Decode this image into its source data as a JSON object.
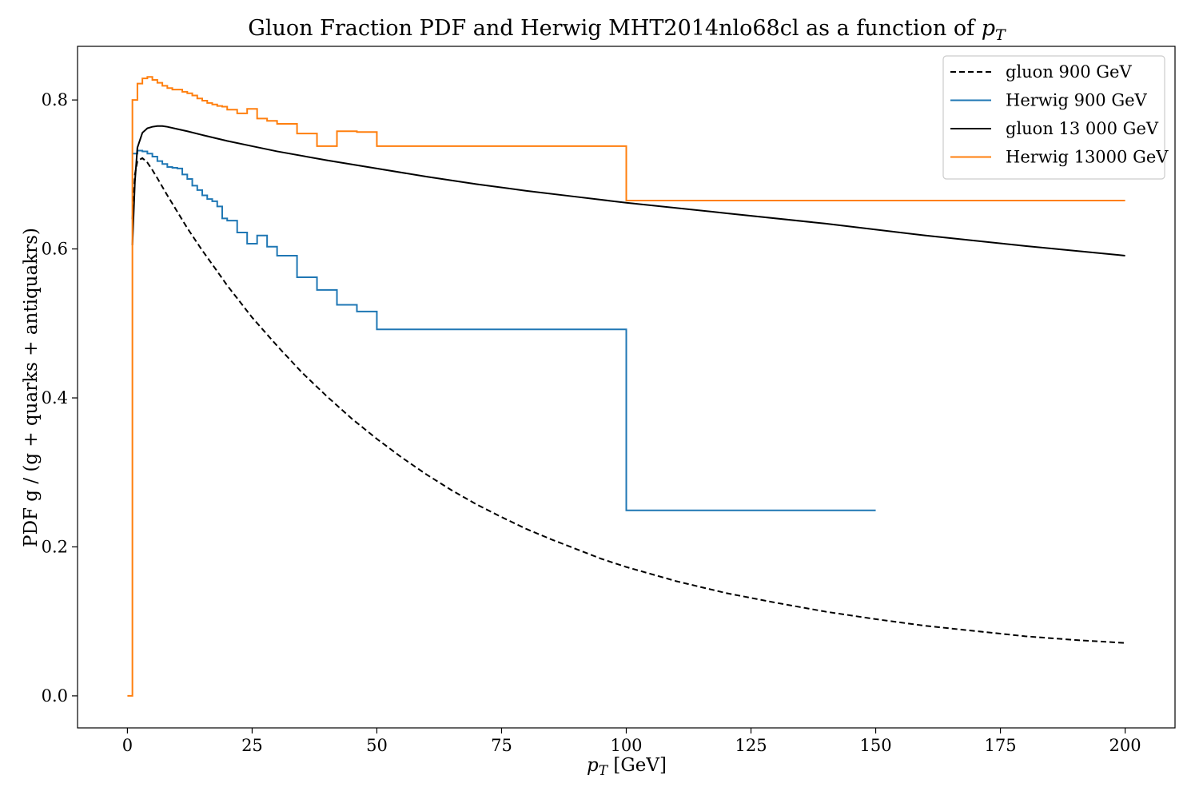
{
  "chart_data": {
    "type": "line",
    "title": "Gluon Fraction PDF and Herwig MHT2014nlo68cl as a function of ",
    "title_math": "p",
    "title_math_sub": "T",
    "xlabel_math": "p",
    "xlabel_math_sub": "T",
    "xlabel": " [GeV]",
    "ylabel": "PDF g / (g + quarks + antiquakrs)",
    "xlim": [
      -10,
      210
    ],
    "ylim": [
      -0.043,
      0.872
    ],
    "xticks": [
      0,
      25,
      50,
      75,
      100,
      125,
      150,
      175,
      200
    ],
    "yticks": [
      0.0,
      0.2,
      0.4,
      0.6,
      0.8
    ],
    "grid": false,
    "legend_position": "top-right",
    "series": [
      {
        "name": "gluon 900 GeV",
        "style": "dashed",
        "color": "#000000",
        "kind": "line",
        "x": [
          1,
          1.5,
          2,
          3,
          4,
          5,
          6,
          8,
          10,
          12,
          15,
          18,
          20,
          25,
          30,
          35,
          40,
          45,
          50,
          55,
          60,
          65,
          70,
          75,
          80,
          85,
          90,
          95,
          100,
          110,
          120,
          130,
          140,
          150,
          160,
          170,
          180,
          190,
          200
        ],
        "y": [
          0.64,
          0.7,
          0.718,
          0.722,
          0.716,
          0.706,
          0.695,
          0.672,
          0.65,
          0.628,
          0.598,
          0.57,
          0.551,
          0.508,
          0.47,
          0.434,
          0.402,
          0.372,
          0.345,
          0.32,
          0.297,
          0.276,
          0.257,
          0.24,
          0.224,
          0.21,
          0.197,
          0.184,
          0.173,
          0.154,
          0.138,
          0.125,
          0.113,
          0.103,
          0.094,
          0.087,
          0.08,
          0.075,
          0.071
        ]
      },
      {
        "name": "Herwig 900 GeV",
        "style": "solid",
        "color": "#1f77b4",
        "kind": "step",
        "edges": [
          1,
          2,
          3,
          4,
          5,
          6,
          7,
          8,
          9,
          10,
          11,
          12,
          13,
          14,
          15,
          16,
          17,
          18,
          19,
          20,
          22,
          24,
          26,
          28,
          30,
          34,
          38,
          42,
          46,
          50,
          100,
          150
        ],
        "values": [
          0.728,
          0.732,
          0.731,
          0.728,
          0.724,
          0.718,
          0.714,
          0.71,
          0.709,
          0.708,
          0.7,
          0.694,
          0.685,
          0.679,
          0.672,
          0.667,
          0.664,
          0.657,
          0.641,
          0.638,
          0.622,
          0.607,
          0.618,
          0.603,
          0.591,
          0.562,
          0.545,
          0.525,
          0.516,
          0.492,
          0.249
        ]
      },
      {
        "name": "gluon 13 000 GeV",
        "style": "solid",
        "color": "#000000",
        "kind": "line",
        "x": [
          1,
          1.5,
          2,
          3,
          4,
          5,
          6,
          7,
          8,
          10,
          12,
          15,
          20,
          25,
          30,
          40,
          50,
          60,
          70,
          80,
          90,
          100,
          120,
          140,
          160,
          180,
          200
        ],
        "y": [
          0.605,
          0.69,
          0.736,
          0.756,
          0.762,
          0.764,
          0.765,
          0.765,
          0.764,
          0.761,
          0.758,
          0.753,
          0.745,
          0.738,
          0.731,
          0.719,
          0.708,
          0.697,
          0.687,
          0.678,
          0.67,
          0.662,
          0.648,
          0.634,
          0.618,
          0.604,
          0.591
        ]
      },
      {
        "name": "Herwig 13000 GeV",
        "style": "solid",
        "color": "#ff7f0e",
        "kind": "step",
        "edges": [
          0,
          1,
          2,
          3,
          4,
          5,
          6,
          7,
          8,
          9,
          10,
          11,
          12,
          13,
          14,
          15,
          16,
          17,
          18,
          19,
          20,
          22,
          24,
          26,
          28,
          30,
          34,
          38,
          42,
          46,
          50,
          100,
          200
        ],
        "values": [
          0.0,
          0.8,
          0.822,
          0.829,
          0.831,
          0.827,
          0.823,
          0.819,
          0.816,
          0.814,
          0.814,
          0.811,
          0.809,
          0.806,
          0.802,
          0.799,
          0.796,
          0.794,
          0.792,
          0.791,
          0.787,
          0.782,
          0.788,
          0.775,
          0.772,
          0.768,
          0.755,
          0.738,
          0.758,
          0.757,
          0.738,
          0.665
        ]
      }
    ]
  }
}
